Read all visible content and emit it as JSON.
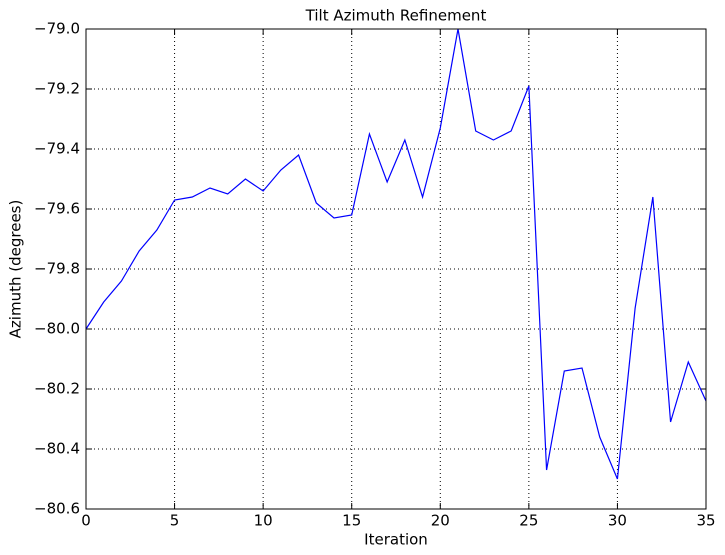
{
  "chart_data": {
    "type": "line",
    "title": "Tilt Azimuth Refinement",
    "x_label": "Iteration",
    "y_label": "Azimuth (degrees)",
    "x": [
      0,
      1,
      2,
      3,
      4,
      5,
      6,
      7,
      8,
      9,
      10,
      11,
      12,
      13,
      14,
      15,
      16,
      17,
      18,
      19,
      20,
      21,
      22,
      23,
      24,
      25,
      26,
      27,
      28,
      29,
      30,
      31,
      32,
      33,
      34,
      35
    ],
    "series": [
      {
        "name": "Azimuth",
        "color": "#0000ff",
        "values": [
          -80.0,
          -79.91,
          -79.84,
          -79.74,
          -79.67,
          -79.57,
          -79.56,
          -79.53,
          -79.55,
          -79.5,
          -79.54,
          -79.47,
          -79.42,
          -79.58,
          -79.63,
          -79.62,
          -79.35,
          -79.51,
          -79.37,
          -79.56,
          -79.33,
          -79.0,
          -79.34,
          -79.37,
          -79.34,
          -79.19,
          -80.47,
          -80.14,
          -80.13,
          -80.36,
          -80.5,
          -79.93,
          -79.56,
          -80.31,
          -80.11,
          -80.24
        ]
      }
    ],
    "xlim": [
      0,
      35
    ],
    "xticks": [
      0,
      5,
      10,
      15,
      20,
      25,
      30,
      35
    ],
    "ylim": [
      -80.6,
      -79.0
    ],
    "yticks": [
      {
        "value": -80.6,
        "label": "−80.6"
      },
      {
        "value": -80.4,
        "label": "−80.4"
      },
      {
        "value": -80.2,
        "label": "−80.2"
      },
      {
        "value": -80.0,
        "label": "−80.0"
      },
      {
        "value": -79.8,
        "label": "−79.8"
      },
      {
        "value": -79.6,
        "label": "−79.6"
      },
      {
        "value": -79.4,
        "label": "−79.4"
      },
      {
        "value": -79.2,
        "label": "−79.2"
      },
      {
        "value": -79.0,
        "label": "−79.0"
      }
    ],
    "grid": true
  }
}
